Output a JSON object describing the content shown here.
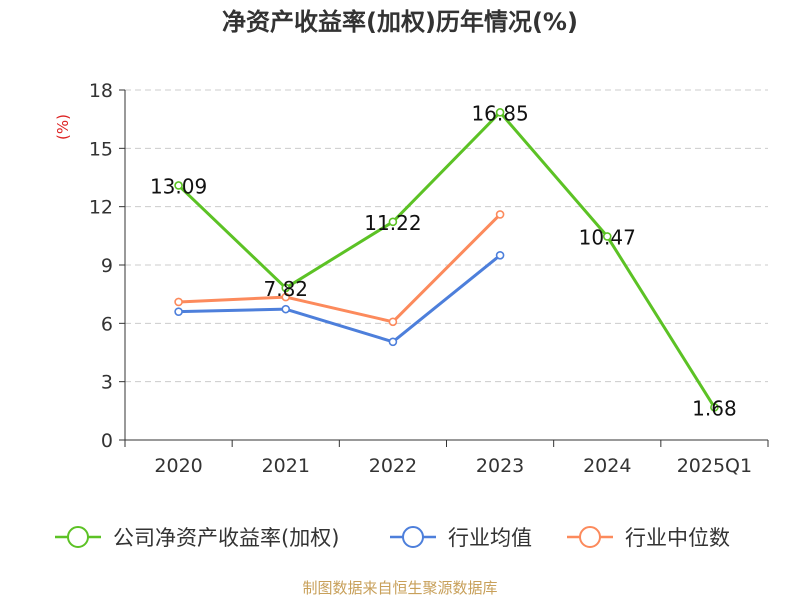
{
  "chart_data": {
    "type": "line",
    "title": "净资产收益率(加权)历年情况(%)",
    "ylabel": "(%)",
    "xlabel": "",
    "categories": [
      "2020",
      "2021",
      "2022",
      "2023",
      "2024",
      "2025Q1"
    ],
    "ylim": [
      0,
      18
    ],
    "yticks": [
      0,
      3,
      6,
      9,
      12,
      15,
      18
    ],
    "grid": true,
    "legend_position": "bottom",
    "series": [
      {
        "name": "公司净资产收益率(加权)",
        "color": "#5cc225",
        "values": [
          13.09,
          7.82,
          11.22,
          16.85,
          10.47,
          1.68
        ],
        "labels": [
          "13.09",
          "7.82",
          "11.22",
          "16.85",
          "10.47",
          "1.68"
        ]
      },
      {
        "name": "行业均值",
        "color": "#4d7fdb",
        "values": [
          6.6,
          6.73,
          5.05,
          9.5,
          null,
          null
        ]
      },
      {
        "name": "行业中位数",
        "color": "#fc8a5c",
        "values": [
          7.1,
          7.35,
          6.08,
          11.6,
          null,
          null
        ]
      }
    ]
  },
  "footer": {
    "source": "制图数据来自恒生聚源数据库"
  }
}
